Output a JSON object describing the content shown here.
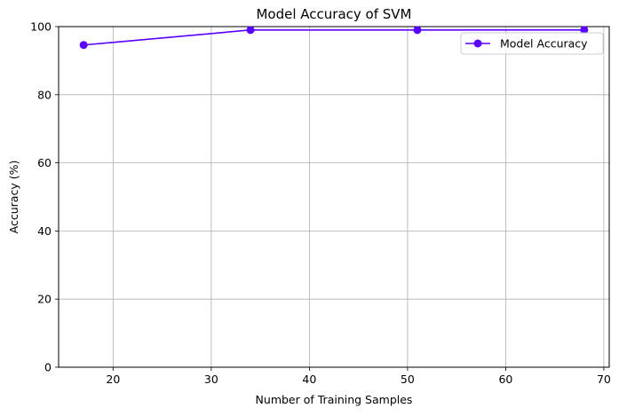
{
  "chart_data": {
    "type": "line",
    "title": "Model Accuracy of SVM",
    "xlabel": "Number of Training Samples",
    "ylabel": "Accuracy (%)",
    "xlim": [
      14.45,
      70.55
    ],
    "ylim": [
      0,
      100
    ],
    "xticks": [
      20,
      30,
      40,
      50,
      60,
      70
    ],
    "yticks": [
      0,
      20,
      40,
      60,
      80,
      100
    ],
    "grid": true,
    "legend_position": "upper right",
    "series": [
      {
        "name": "Model Accuracy",
        "color": "#5a00ff",
        "marker": "circle",
        "points": [
          {
            "x": 17,
            "y": 94.6
          },
          {
            "x": 34,
            "y": 99.0
          },
          {
            "x": 51,
            "y": 99.0
          },
          {
            "x": 68,
            "y": 99.0
          }
        ]
      }
    ]
  }
}
